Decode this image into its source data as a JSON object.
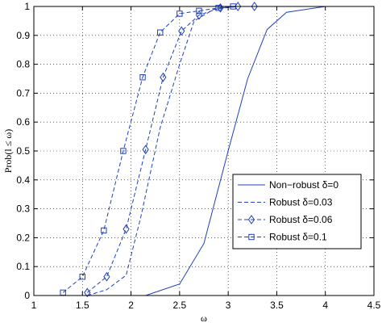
{
  "chart_data": {
    "type": "line",
    "title": "",
    "xlabel": "ω",
    "ylabel": "Prob(l ≤ ω)",
    "xlim": [
      1,
      4.5
    ],
    "ylim": [
      0,
      1
    ],
    "xticks": [
      1,
      1.5,
      2,
      2.5,
      3,
      3.5,
      4,
      4.5
    ],
    "xtick_labels": [
      "1",
      "1.5",
      "2",
      "2.5",
      "3",
      "3.5",
      "4",
      "4.5"
    ],
    "yticks": [
      0,
      0.1,
      0.2,
      0.3,
      0.4,
      0.5,
      0.6,
      0.7,
      0.8,
      0.9,
      1
    ],
    "ytick_labels": [
      "0",
      "0.1",
      "0.2",
      "0.3",
      "0.4",
      "0.5",
      "0.6",
      "0.7",
      "0.8",
      "0.9",
      "1"
    ],
    "grid": true,
    "legend_position": "lower-right",
    "line_color": "#1f3fbf",
    "series": [
      {
        "name": "Non−robust δ=0",
        "line": "solid",
        "marker": "none",
        "x": [
          2.15,
          2.5,
          2.75,
          3.0,
          3.2,
          3.4,
          3.6,
          4.0,
          4.5
        ],
        "y": [
          0.0,
          0.04,
          0.18,
          0.5,
          0.75,
          0.92,
          0.98,
          1.0,
          1.0
        ]
      },
      {
        "name": "Robust δ=0.03",
        "line": "dashed",
        "marker": "none",
        "x": [
          1.55,
          1.75,
          1.95,
          2.1,
          2.3,
          2.5,
          2.65,
          2.85,
          3.1
        ],
        "y": [
          0.0,
          0.02,
          0.07,
          0.27,
          0.58,
          0.8,
          0.95,
          0.99,
          1.0
        ]
      },
      {
        "name": "Robust δ=0.06",
        "line": "dashed",
        "marker": "diamond",
        "x": [
          1.55,
          1.75,
          1.95,
          2.15,
          2.33,
          2.52,
          2.7,
          2.92,
          3.1,
          3.27
        ],
        "y": [
          0.01,
          0.065,
          0.23,
          0.505,
          0.755,
          0.915,
          0.97,
          0.995,
          1.0,
          1.0
        ]
      },
      {
        "name": "Robust δ=0.1",
        "line": "dashed",
        "marker": "square",
        "x": [
          1.3,
          1.5,
          1.72,
          1.92,
          2.12,
          2.3,
          2.5,
          2.7,
          2.9,
          3.05
        ],
        "y": [
          0.01,
          0.065,
          0.225,
          0.5,
          0.755,
          0.91,
          0.975,
          0.985,
          0.995,
          1.0
        ]
      }
    ]
  }
}
